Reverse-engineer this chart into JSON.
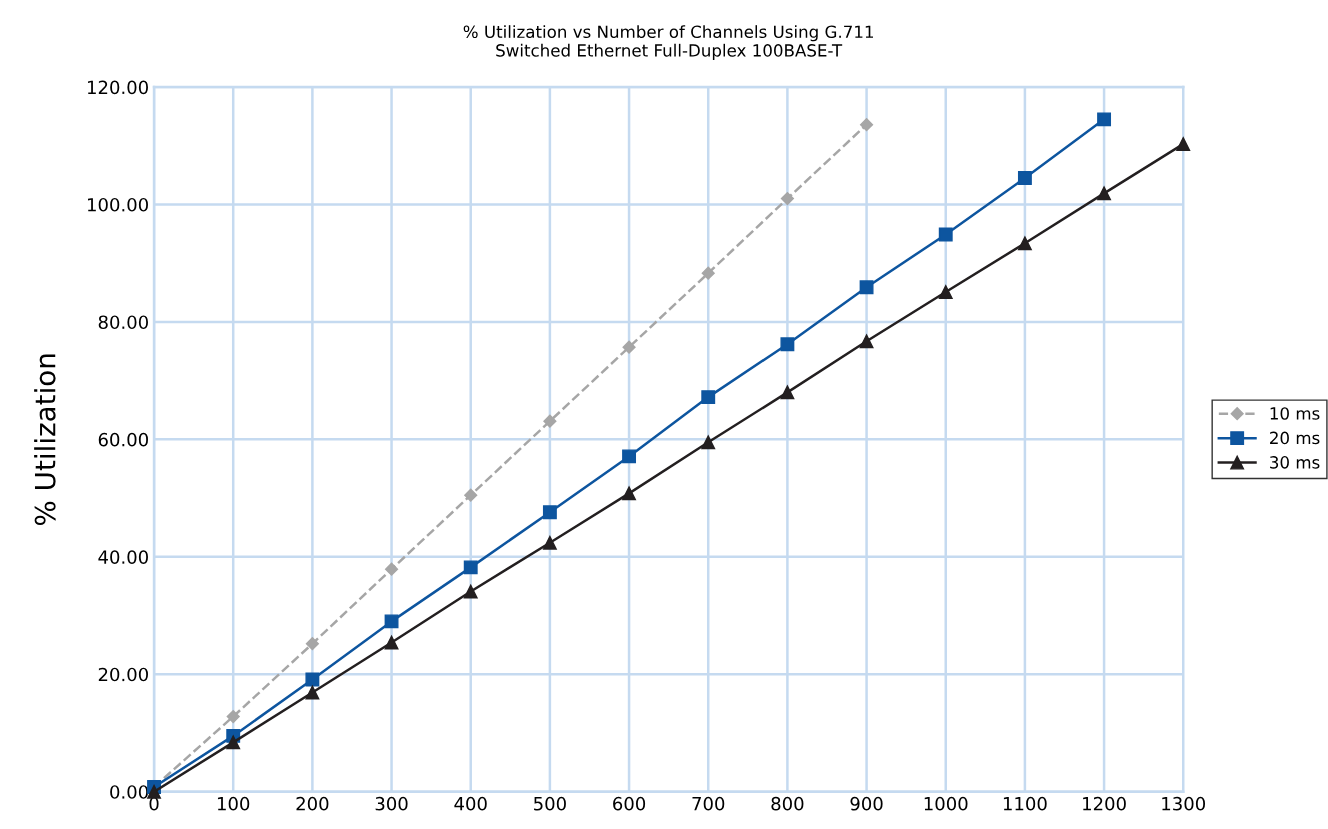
{
  "chart_data": {
    "type": "line",
    "title": "% Utilization vs Number of Channels Using G.711\nSwitched Ethernet Full-Duplex 100BASE-T",
    "ylabel": "% Utilization",
    "x": [
      0,
      100,
      200,
      300,
      400,
      500,
      600,
      700,
      800,
      900,
      1000,
      1100,
      1200,
      1300
    ],
    "series": [
      {
        "name": "10 ms",
        "color": "#a6a6a6",
        "marker": "diamond",
        "line_style": "dashed",
        "values": [
          0.8,
          12.8,
          25.2,
          37.9,
          50.5,
          63.1,
          75.7,
          88.3,
          101.0,
          113.6,
          null,
          null,
          null,
          null
        ]
      },
      {
        "name": "20 ms",
        "color": "#0d559f",
        "marker": "square",
        "line_style": "solid",
        "values": [
          0.8,
          9.5,
          19.1,
          29.0,
          38.2,
          47.6,
          57.1,
          67.2,
          76.2,
          85.9,
          94.9,
          104.5,
          114.5,
          null
        ]
      },
      {
        "name": "30 ms",
        "color": "#231f20",
        "marker": "triangle",
        "line_style": "solid",
        "values": [
          0,
          8.4,
          16.9,
          25.4,
          34.1,
          42.4,
          50.8,
          59.5,
          68.0,
          76.7,
          85.1,
          93.4,
          101.9,
          110.3
        ]
      }
    ],
    "xlim": [
      0,
      1300
    ],
    "xticks": [
      0,
      100,
      200,
      300,
      400,
      500,
      600,
      700,
      800,
      900,
      1000,
      1100,
      1200,
      1300
    ],
    "ylim": [
      0,
      120
    ],
    "yticks": [
      {
        "value": 0,
        "label": "0.00"
      },
      {
        "value": 20,
        "label": "20.00"
      },
      {
        "value": 40,
        "label": "40.00"
      },
      {
        "value": 60,
        "label": "60.00"
      },
      {
        "value": 80,
        "label": "80.00"
      },
      {
        "value": 100,
        "label": "100.00"
      },
      {
        "value": 120,
        "label": "120.00"
      }
    ],
    "grid": true,
    "legend": "right"
  }
}
